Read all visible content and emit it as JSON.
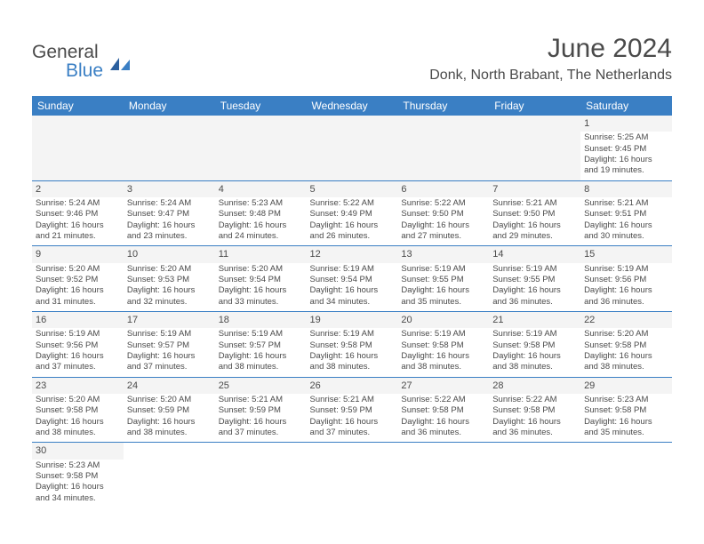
{
  "logo": {
    "text_general": "General",
    "text_blue": "Blue"
  },
  "header": {
    "title": "June 2024",
    "location": "Donk, North Brabant, The Netherlands"
  },
  "daynames": [
    "Sunday",
    "Monday",
    "Tuesday",
    "Wednesday",
    "Thursday",
    "Friday",
    "Saturday"
  ],
  "colors": {
    "header_bg": "#3a7fc4",
    "header_text": "#ffffff",
    "body_text": "#4a4a4a",
    "empty_bg": "#f4f4f4"
  },
  "weeks": [
    [
      {
        "blank": true
      },
      {
        "blank": true
      },
      {
        "blank": true
      },
      {
        "blank": true
      },
      {
        "blank": true
      },
      {
        "blank": true
      },
      {
        "day": "1",
        "sunrise": "Sunrise: 5:25 AM",
        "sunset": "Sunset: 9:45 PM",
        "daylight1": "Daylight: 16 hours",
        "daylight2": "and 19 minutes."
      }
    ],
    [
      {
        "day": "2",
        "sunrise": "Sunrise: 5:24 AM",
        "sunset": "Sunset: 9:46 PM",
        "daylight1": "Daylight: 16 hours",
        "daylight2": "and 21 minutes."
      },
      {
        "day": "3",
        "sunrise": "Sunrise: 5:24 AM",
        "sunset": "Sunset: 9:47 PM",
        "daylight1": "Daylight: 16 hours",
        "daylight2": "and 23 minutes."
      },
      {
        "day": "4",
        "sunrise": "Sunrise: 5:23 AM",
        "sunset": "Sunset: 9:48 PM",
        "daylight1": "Daylight: 16 hours",
        "daylight2": "and 24 minutes."
      },
      {
        "day": "5",
        "sunrise": "Sunrise: 5:22 AM",
        "sunset": "Sunset: 9:49 PM",
        "daylight1": "Daylight: 16 hours",
        "daylight2": "and 26 minutes."
      },
      {
        "day": "6",
        "sunrise": "Sunrise: 5:22 AM",
        "sunset": "Sunset: 9:50 PM",
        "daylight1": "Daylight: 16 hours",
        "daylight2": "and 27 minutes."
      },
      {
        "day": "7",
        "sunrise": "Sunrise: 5:21 AM",
        "sunset": "Sunset: 9:50 PM",
        "daylight1": "Daylight: 16 hours",
        "daylight2": "and 29 minutes."
      },
      {
        "day": "8",
        "sunrise": "Sunrise: 5:21 AM",
        "sunset": "Sunset: 9:51 PM",
        "daylight1": "Daylight: 16 hours",
        "daylight2": "and 30 minutes."
      }
    ],
    [
      {
        "day": "9",
        "sunrise": "Sunrise: 5:20 AM",
        "sunset": "Sunset: 9:52 PM",
        "daylight1": "Daylight: 16 hours",
        "daylight2": "and 31 minutes."
      },
      {
        "day": "10",
        "sunrise": "Sunrise: 5:20 AM",
        "sunset": "Sunset: 9:53 PM",
        "daylight1": "Daylight: 16 hours",
        "daylight2": "and 32 minutes."
      },
      {
        "day": "11",
        "sunrise": "Sunrise: 5:20 AM",
        "sunset": "Sunset: 9:54 PM",
        "daylight1": "Daylight: 16 hours",
        "daylight2": "and 33 minutes."
      },
      {
        "day": "12",
        "sunrise": "Sunrise: 5:19 AM",
        "sunset": "Sunset: 9:54 PM",
        "daylight1": "Daylight: 16 hours",
        "daylight2": "and 34 minutes."
      },
      {
        "day": "13",
        "sunrise": "Sunrise: 5:19 AM",
        "sunset": "Sunset: 9:55 PM",
        "daylight1": "Daylight: 16 hours",
        "daylight2": "and 35 minutes."
      },
      {
        "day": "14",
        "sunrise": "Sunrise: 5:19 AM",
        "sunset": "Sunset: 9:55 PM",
        "daylight1": "Daylight: 16 hours",
        "daylight2": "and 36 minutes."
      },
      {
        "day": "15",
        "sunrise": "Sunrise: 5:19 AM",
        "sunset": "Sunset: 9:56 PM",
        "daylight1": "Daylight: 16 hours",
        "daylight2": "and 36 minutes."
      }
    ],
    [
      {
        "day": "16",
        "sunrise": "Sunrise: 5:19 AM",
        "sunset": "Sunset: 9:56 PM",
        "daylight1": "Daylight: 16 hours",
        "daylight2": "and 37 minutes."
      },
      {
        "day": "17",
        "sunrise": "Sunrise: 5:19 AM",
        "sunset": "Sunset: 9:57 PM",
        "daylight1": "Daylight: 16 hours",
        "daylight2": "and 37 minutes."
      },
      {
        "day": "18",
        "sunrise": "Sunrise: 5:19 AM",
        "sunset": "Sunset: 9:57 PM",
        "daylight1": "Daylight: 16 hours",
        "daylight2": "and 38 minutes."
      },
      {
        "day": "19",
        "sunrise": "Sunrise: 5:19 AM",
        "sunset": "Sunset: 9:58 PM",
        "daylight1": "Daylight: 16 hours",
        "daylight2": "and 38 minutes."
      },
      {
        "day": "20",
        "sunrise": "Sunrise: 5:19 AM",
        "sunset": "Sunset: 9:58 PM",
        "daylight1": "Daylight: 16 hours",
        "daylight2": "and 38 minutes."
      },
      {
        "day": "21",
        "sunrise": "Sunrise: 5:19 AM",
        "sunset": "Sunset: 9:58 PM",
        "daylight1": "Daylight: 16 hours",
        "daylight2": "and 38 minutes."
      },
      {
        "day": "22",
        "sunrise": "Sunrise: 5:20 AM",
        "sunset": "Sunset: 9:58 PM",
        "daylight1": "Daylight: 16 hours",
        "daylight2": "and 38 minutes."
      }
    ],
    [
      {
        "day": "23",
        "sunrise": "Sunrise: 5:20 AM",
        "sunset": "Sunset: 9:58 PM",
        "daylight1": "Daylight: 16 hours",
        "daylight2": "and 38 minutes."
      },
      {
        "day": "24",
        "sunrise": "Sunrise: 5:20 AM",
        "sunset": "Sunset: 9:59 PM",
        "daylight1": "Daylight: 16 hours",
        "daylight2": "and 38 minutes."
      },
      {
        "day": "25",
        "sunrise": "Sunrise: 5:21 AM",
        "sunset": "Sunset: 9:59 PM",
        "daylight1": "Daylight: 16 hours",
        "daylight2": "and 37 minutes."
      },
      {
        "day": "26",
        "sunrise": "Sunrise: 5:21 AM",
        "sunset": "Sunset: 9:59 PM",
        "daylight1": "Daylight: 16 hours",
        "daylight2": "and 37 minutes."
      },
      {
        "day": "27",
        "sunrise": "Sunrise: 5:22 AM",
        "sunset": "Sunset: 9:58 PM",
        "daylight1": "Daylight: 16 hours",
        "daylight2": "and 36 minutes."
      },
      {
        "day": "28",
        "sunrise": "Sunrise: 5:22 AM",
        "sunset": "Sunset: 9:58 PM",
        "daylight1": "Daylight: 16 hours",
        "daylight2": "and 36 minutes."
      },
      {
        "day": "29",
        "sunrise": "Sunrise: 5:23 AM",
        "sunset": "Sunset: 9:58 PM",
        "daylight1": "Daylight: 16 hours",
        "daylight2": "and 35 minutes."
      }
    ],
    [
      {
        "day": "30",
        "sunrise": "Sunrise: 5:23 AM",
        "sunset": "Sunset: 9:58 PM",
        "daylight1": "Daylight: 16 hours",
        "daylight2": "and 34 minutes."
      },
      {
        "blank": true
      },
      {
        "blank": true
      },
      {
        "blank": true
      },
      {
        "blank": true
      },
      {
        "blank": true
      },
      {
        "blank": true
      }
    ]
  ]
}
